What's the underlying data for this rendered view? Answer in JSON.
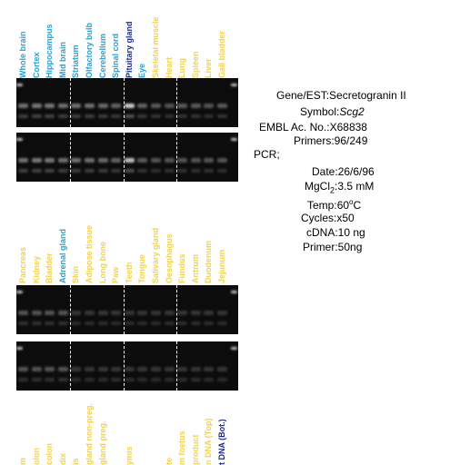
{
  "rows": [
    {
      "labels": [
        {
          "text": "Whole brain",
          "color": "#2aa0d0"
        },
        {
          "text": "Cortex",
          "color": "#2aa0d0"
        },
        {
          "text": "Hippocampus",
          "color": "#2aa0d0"
        },
        {
          "text": "Mid brain",
          "color": "#2aa0d0"
        },
        {
          "text": "Striatum",
          "color": "#2aa0d0"
        },
        {
          "text": "Olfactory bulb",
          "color": "#2aa0d0"
        },
        {
          "text": "Cerebellum",
          "color": "#2aa0d0"
        },
        {
          "text": "Spinal cord",
          "color": "#2aa0d0"
        },
        {
          "text": "Pituitary gland",
          "color": "#1a2a8a"
        },
        {
          "text": "Eye",
          "color": "#2aa0d0"
        },
        {
          "text": "Skeletal muscle",
          "color": "#f2d24a"
        },
        {
          "text": "Heart",
          "color": "#f2d24a"
        },
        {
          "text": "Lung",
          "color": "#f2d24a"
        },
        {
          "text": "Spleen",
          "color": "#f2d24a"
        },
        {
          "text": "Liver",
          "color": "#f2d24a"
        },
        {
          "text": "Gall bladder",
          "color": "#f2d24a"
        }
      ]
    },
    {
      "labels": [
        {
          "text": "Pancreas",
          "color": "#f2d24a"
        },
        {
          "text": "Kidney",
          "color": "#f2d24a"
        },
        {
          "text": "Bladder",
          "color": "#f2d24a"
        },
        {
          "text": "Adrenal gland",
          "color": "#2aa0d0"
        },
        {
          "text": "Skin",
          "color": "#f2d24a"
        },
        {
          "text": "Adipose tissue",
          "color": "#f2d24a"
        },
        {
          "text": "Long bone",
          "color": "#f2d24a"
        },
        {
          "text": "Paw",
          "color": "#f2d24a"
        },
        {
          "text": "Teeth",
          "color": "#f2d24a"
        },
        {
          "text": "Tongue",
          "color": "#f2d24a"
        },
        {
          "text": "Salivary gland",
          "color": "#f2d24a"
        },
        {
          "text": "Oesophagus",
          "color": "#f2d24a"
        },
        {
          "text": "Fundus",
          "color": "#f2d24a"
        },
        {
          "text": "Antrum",
          "color": "#f2d24a"
        },
        {
          "text": "Duodenum",
          "color": "#f2d24a"
        },
        {
          "text": "Jejunum",
          "color": "#f2d24a"
        }
      ]
    },
    {
      "labels": [
        {
          "text": "m",
          "color": "#f2d24a"
        },
        {
          "text": "olon",
          "color": "#f2d24a"
        },
        {
          "text": "colon",
          "color": "#f2d24a"
        },
        {
          "text": "dix",
          "color": "#f2d24a"
        },
        {
          "text": "is",
          "color": "#f2d24a"
        },
        {
          "text": "gland non-preg.",
          "color": "#f2d24a"
        },
        {
          "text": "gland preg.",
          "color": "#f2d24a"
        },
        {
          "text": "",
          "color": "#f2d24a"
        },
        {
          "text": "ymis",
          "color": "#f2d24a"
        },
        {
          "text": "",
          "color": "#f2d24a"
        },
        {
          "text": "",
          "color": "#f2d24a"
        },
        {
          "text": "te",
          "color": "#f2d24a"
        },
        {
          "text": "m foetus",
          "color": "#f2d24a"
        },
        {
          "text": "product",
          "color": "#f2d24a"
        },
        {
          "text": "n DNA (Top)",
          "color": "#f2d24a"
        },
        {
          "text": "t DNA (Bot.)",
          "color": "#1a2a8a"
        }
      ]
    }
  ],
  "gels": [
    {
      "lanes": [
        0.7,
        0.75,
        0.75,
        0.7,
        0.7,
        0.7,
        0.65,
        0.6,
        0.95,
        0.6,
        0.55,
        0.5,
        0.55,
        0.55,
        0.5,
        0.55
      ]
    },
    {
      "lanes": [
        0.7,
        0.75,
        0.75,
        0.7,
        0.7,
        0.7,
        0.65,
        0.6,
        0.9,
        0.55,
        0.5,
        0.5,
        0.5,
        0.5,
        0.5,
        0.5
      ]
    },
    {
      "lanes": [
        0.5,
        0.5,
        0.5,
        0.5,
        0.45,
        0.45,
        0.45,
        0.45,
        0.45,
        0.45,
        0.45,
        0.45,
        0.45,
        0.45,
        0.45,
        0.45
      ]
    },
    {
      "lanes": [
        0.5,
        0.5,
        0.5,
        0.5,
        0.45,
        0.45,
        0.45,
        0.45,
        0.45,
        0.45,
        0.45,
        0.45,
        0.45,
        0.45,
        0.45,
        0.45
      ]
    }
  ],
  "info": {
    "gene_key": "Gene/EST:",
    "gene_val": "Secretogranin II",
    "symbol_key": "Symbol:",
    "symbol_val": "Scg2",
    "embl_key": "EMBL Ac. No.:",
    "embl_val": "X68838",
    "primers_key": "Primers:",
    "primers_val": "96/249",
    "pcr_key": "PCR;",
    "date_key": "Date:",
    "date_val": "26/6/96",
    "mgcl_key_a": "MgCl",
    "mgcl_key_sub": "2",
    "mgcl_key_b": ":",
    "mgcl_val": "3.5 mM",
    "temp_key": "Temp:",
    "temp_val_a": "60",
    "temp_val_sup": "o",
    "temp_val_b": "C",
    "cycles_key": "Cycles:",
    "cycles_val": "x50",
    "cdna_key": "cDNA:",
    "cdna_val": "10 ng",
    "primer_key": "Primer:",
    "primer_val": "50ng"
  }
}
